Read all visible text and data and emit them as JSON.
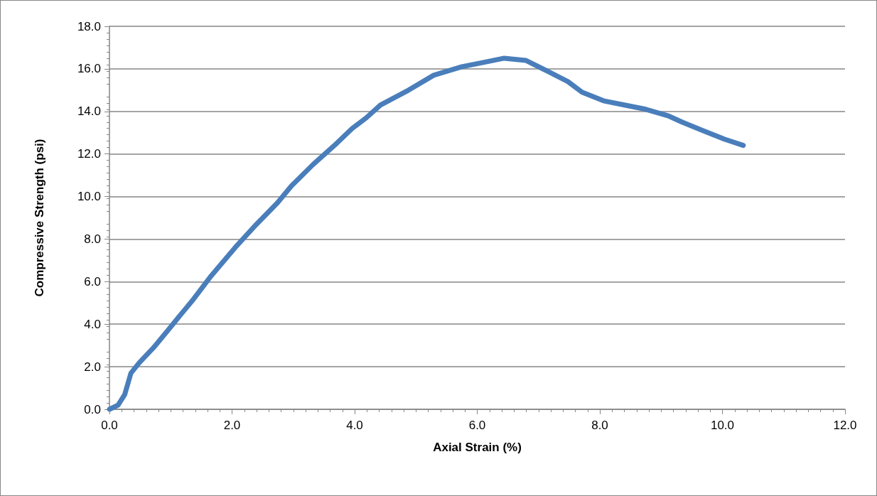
{
  "chart_data": {
    "type": "line",
    "xlabel": "Axial Strain (%)",
    "ylabel": "Compressive Strength (psi)",
    "xlim": [
      0,
      12
    ],
    "xticks": [
      {
        "value": 0,
        "label": "0.0"
      },
      {
        "value": 2,
        "label": "2.0"
      },
      {
        "value": 4,
        "label": "4.0"
      },
      {
        "value": 6,
        "label": "6.0"
      },
      {
        "value": 8,
        "label": "8.0"
      },
      {
        "value": 10,
        "label": "10.0"
      },
      {
        "value": 12,
        "label": "12.0"
      }
    ],
    "ylim": [
      0,
      18
    ],
    "yticks": [
      {
        "value": 0,
        "label": "0.0"
      },
      {
        "value": 2,
        "label": "2.0"
      },
      {
        "value": 4,
        "label": "4.0"
      },
      {
        "value": 6,
        "label": "6.0"
      },
      {
        "value": 8,
        "label": "8.0"
      },
      {
        "value": 10,
        "label": "10.0"
      },
      {
        "value": 12,
        "label": "12.0"
      },
      {
        "value": 14,
        "label": "14.0"
      },
      {
        "value": 16,
        "label": "16.0"
      },
      {
        "value": 18,
        "label": "18.0"
      }
    ],
    "grid": "y",
    "marker": "none",
    "line_style": "solid",
    "series": [
      {
        "color": "#4a7ebb",
        "x": [
          0,
          0.14,
          0.25,
          0.35,
          0.49,
          0.72,
          0.95,
          1.12,
          1.35,
          1.64,
          2.05,
          2.4,
          2.74,
          2.97,
          3.32,
          3.67,
          3.96,
          4.19,
          4.42,
          4.88,
          5.29,
          5.75,
          6.1,
          6.44,
          6.79,
          7.14,
          7.48,
          7.71,
          8.06,
          8.4,
          8.75,
          9.11,
          9.34,
          9.68,
          10.03,
          10.34
        ],
        "values": [
          0,
          0.2,
          0.7,
          1.7,
          2.2,
          2.9,
          3.7,
          4.3,
          5.1,
          6.2,
          7.6,
          8.7,
          9.7,
          10.5,
          11.5,
          12.4,
          13.2,
          13.7,
          14.3,
          15.0,
          15.7,
          16.1,
          16.3,
          16.5,
          16.4,
          15.9,
          15.4,
          14.9,
          14.5,
          14.3,
          14.1,
          13.8,
          13.5,
          13.1,
          12.7,
          12.4
        ]
      }
    ]
  }
}
